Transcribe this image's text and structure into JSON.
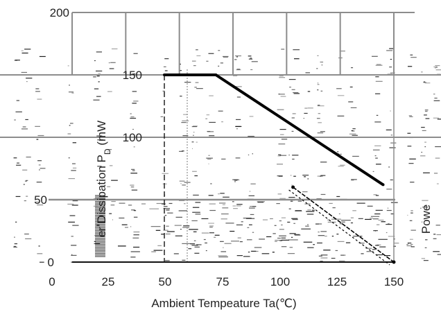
{
  "chart_data": {
    "type": "line",
    "title": "",
    "xlabel": "Ambient Tempeature Ta(℃)",
    "ylabel": "Power Dissipation  PD (mW)",
    "ylabel_fragment": "er Dissipation  P",
    "ylabel_subscript": "D",
    "ylabel_unit_fragment": " (mW",
    "right_label_fragment": "Powe",
    "x_ticks": [
      "0",
      "25",
      "50",
      "75",
      "100",
      "125",
      "150"
    ],
    "y_ticks": [
      "0",
      "50",
      "100",
      "150",
      "200"
    ],
    "xlim": [
      0,
      150
    ],
    "ylim": [
      0,
      200
    ],
    "grid": true,
    "series": [
      {
        "x": [
          43,
          67,
          145
        ],
        "y": [
          150,
          150,
          62
        ]
      },
      {
        "x": [
          103,
          150
        ],
        "y": [
          60,
          0
        ]
      }
    ]
  }
}
